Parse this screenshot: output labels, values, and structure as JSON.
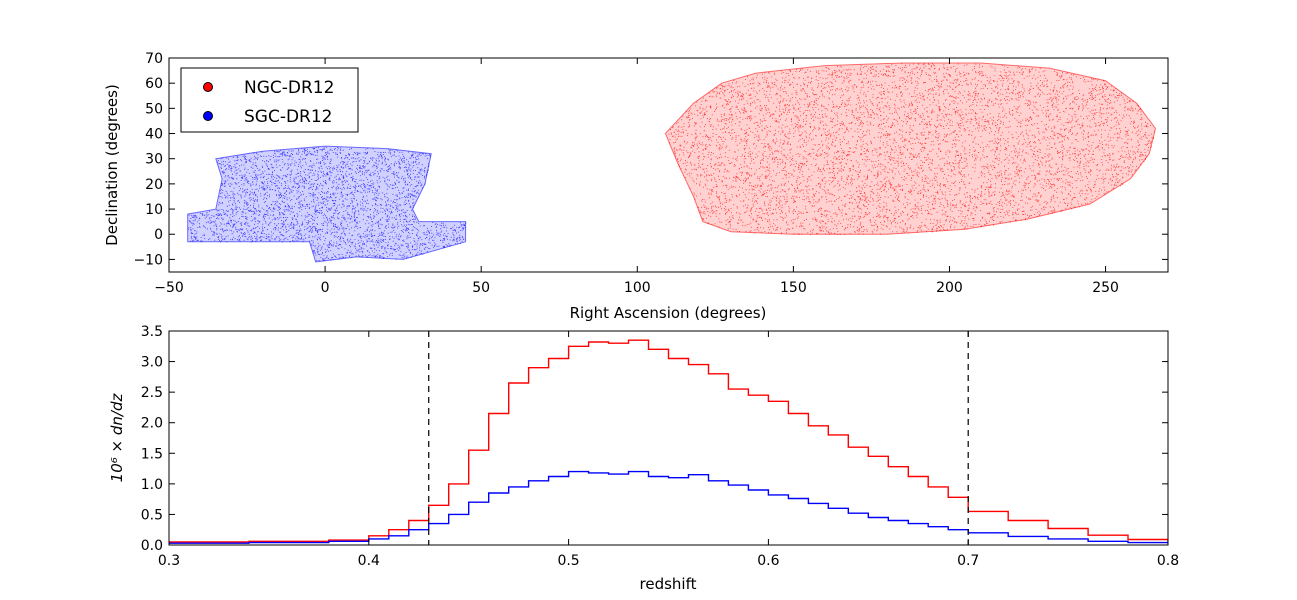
{
  "chart_data": [
    {
      "type": "scatter",
      "title": "",
      "xlabel": "Right Ascension (degrees)",
      "ylabel": "Declination (degrees)",
      "xlim": [
        -50,
        270
      ],
      "ylim": [
        -15,
        70
      ],
      "xticks": [
        "−50",
        "0",
        "50",
        "100",
        "150",
        "200",
        "250"
      ],
      "xtick_values": [
        -50,
        0,
        50,
        100,
        150,
        200,
        250
      ],
      "yticks": [
        "−10",
        "0",
        "10",
        "20",
        "30",
        "40",
        "50",
        "60",
        "70"
      ],
      "ytick_values": [
        -10,
        0,
        10,
        20,
        30,
        40,
        50,
        60,
        70
      ],
      "legend_position": "top-left",
      "series": [
        {
          "name": "NGC-DR12",
          "color": "#ff0000",
          "footprint_outline": [
            [
              109,
              40
            ],
            [
              118,
              52
            ],
            [
              127,
              60
            ],
            [
              138,
              64
            ],
            [
              160,
              67
            ],
            [
              185,
              68
            ],
            [
              210,
              68
            ],
            [
              232,
              66
            ],
            [
              250,
              61
            ],
            [
              260,
              52
            ],
            [
              266,
              42
            ],
            [
              264,
              32
            ],
            [
              258,
              22
            ],
            [
              245,
              12
            ],
            [
              225,
              6
            ],
            [
              205,
              2
            ],
            [
              180,
              0
            ],
            [
              150,
              0
            ],
            [
              130,
              1
            ],
            [
              121,
              5
            ],
            [
              118,
              15
            ],
            [
              113,
              28
            ]
          ]
        },
        {
          "name": "SGC-DR12",
          "color": "#0000ff",
          "footprint_outline": [
            [
              -35,
              30
            ],
            [
              -20,
              33
            ],
            [
              0,
              35
            ],
            [
              20,
              34
            ],
            [
              34,
              32
            ],
            [
              32,
              20
            ],
            [
              28,
              10
            ],
            [
              30,
              5
            ],
            [
              45,
              5
            ],
            [
              45,
              -3
            ],
            [
              25,
              -10
            ],
            [
              10,
              -9
            ],
            [
              -3,
              -11
            ],
            [
              -5,
              -3
            ],
            [
              -44,
              -3
            ],
            [
              -44,
              8
            ],
            [
              -35,
              10
            ],
            [
              -33,
              22
            ]
          ]
        }
      ]
    },
    {
      "type": "line",
      "title": "",
      "xlabel": "redshift",
      "ylabel": "10⁶ × dn/dz",
      "xlim": [
        0.3,
        0.8
      ],
      "ylim": [
        0.0,
        3.5
      ],
      "xticks": [
        "0.3",
        "0.4",
        "0.5",
        "0.6",
        "0.7",
        "0.8"
      ],
      "xtick_values": [
        0.3,
        0.4,
        0.5,
        0.6,
        0.7,
        0.8
      ],
      "yticks": [
        "0.0",
        "0.5",
        "1.0",
        "1.5",
        "2.0",
        "2.5",
        "3.0",
        "3.5"
      ],
      "ytick_values": [
        0.0,
        0.5,
        1.0,
        1.5,
        2.0,
        2.5,
        3.0,
        3.5
      ],
      "vlines": [
        0.43,
        0.7
      ],
      "x": [
        0.3,
        0.32,
        0.34,
        0.36,
        0.38,
        0.4,
        0.41,
        0.42,
        0.43,
        0.44,
        0.45,
        0.46,
        0.47,
        0.48,
        0.49,
        0.5,
        0.51,
        0.52,
        0.53,
        0.54,
        0.55,
        0.56,
        0.57,
        0.58,
        0.59,
        0.6,
        0.61,
        0.62,
        0.63,
        0.64,
        0.65,
        0.66,
        0.67,
        0.68,
        0.69,
        0.7,
        0.72,
        0.74,
        0.76,
        0.78,
        0.8
      ],
      "series": [
        {
          "name": "NGC-DR12",
          "color": "#ff0000",
          "values": [
            0.05,
            0.05,
            0.06,
            0.06,
            0.08,
            0.15,
            0.25,
            0.4,
            0.65,
            1.0,
            1.55,
            2.15,
            2.65,
            2.9,
            3.05,
            3.25,
            3.32,
            3.3,
            3.35,
            3.2,
            3.05,
            2.95,
            2.8,
            2.55,
            2.45,
            2.35,
            2.15,
            1.95,
            1.8,
            1.6,
            1.45,
            1.28,
            1.12,
            0.95,
            0.78,
            0.55,
            0.4,
            0.27,
            0.16,
            0.09,
            0.05
          ]
        },
        {
          "name": "SGC-DR12",
          "color": "#0000ff",
          "values": [
            0.03,
            0.03,
            0.04,
            0.04,
            0.06,
            0.1,
            0.15,
            0.25,
            0.35,
            0.5,
            0.7,
            0.85,
            0.95,
            1.05,
            1.12,
            1.2,
            1.18,
            1.16,
            1.2,
            1.12,
            1.1,
            1.15,
            1.05,
            0.98,
            0.9,
            0.82,
            0.76,
            0.68,
            0.6,
            0.52,
            0.45,
            0.4,
            0.35,
            0.3,
            0.25,
            0.2,
            0.14,
            0.1,
            0.06,
            0.04,
            0.02
          ]
        }
      ]
    }
  ]
}
